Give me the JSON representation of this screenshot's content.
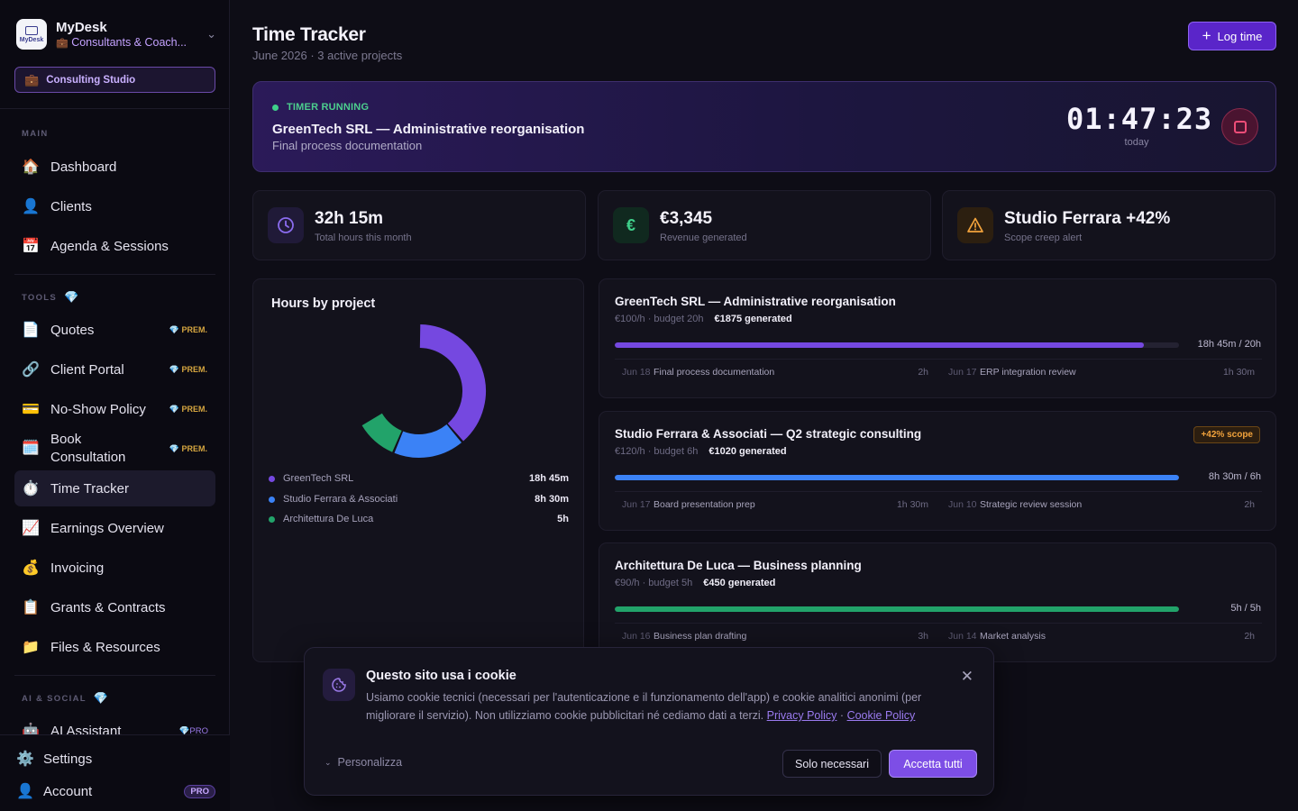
{
  "brand": {
    "name": "MyDesk",
    "logo_text": "MyDesk",
    "workspace": "Consultants & Coach...",
    "studio": "Consulting Studio"
  },
  "sidebar": {
    "sections": {
      "main": "MAIN",
      "tools": "TOOLS",
      "ai_social": "AI & SOCIAL"
    },
    "items": [
      {
        "label": "Dashboard",
        "icon": "house-icon",
        "glyph": "🏠"
      },
      {
        "label": "Clients",
        "icon": "user-icon",
        "glyph": "👤"
      },
      {
        "label": "Agenda & Sessions",
        "icon": "calendar-icon",
        "glyph": "📅"
      },
      {
        "label": "Quotes",
        "icon": "document-icon",
        "glyph": "📄",
        "badge": "PREM."
      },
      {
        "label": "Client Portal",
        "icon": "link-icon",
        "glyph": "🔗",
        "badge": "PREM."
      },
      {
        "label": "No-Show Policy",
        "icon": "credit-card-icon",
        "glyph": "💳",
        "badge": "PREM."
      },
      {
        "label_line1": "Book",
        "label_line2": "Consultation",
        "icon": "calendar-book-icon",
        "glyph": "🗓️",
        "badge": "PREM."
      },
      {
        "label": "Time Tracker",
        "icon": "stopwatch-icon",
        "glyph": "⏱️"
      },
      {
        "label": "Earnings Overview",
        "icon": "chart-icon",
        "glyph": "📈"
      },
      {
        "label": "Invoicing",
        "icon": "money-bag-icon",
        "glyph": "💰"
      },
      {
        "label": "Grants & Contracts",
        "icon": "clipboard-icon",
        "glyph": "📋"
      },
      {
        "label": "Files & Resources",
        "icon": "folder-icon",
        "glyph": "📁"
      },
      {
        "label": "AI Assistant",
        "icon": "robot-icon",
        "glyph": "🤖",
        "badge": "PRO"
      }
    ],
    "bottom": {
      "settings": "Settings",
      "account": "Account",
      "account_badge": "PRO"
    }
  },
  "header": {
    "title": "Time Tracker",
    "subtitle": "June 2026 · 3 active projects",
    "log_time": "Log time"
  },
  "timer": {
    "status": "TIMER RUNNING",
    "project": "GreenTech SRL — Administrative reorganisation",
    "task": "Final process documentation",
    "elapsed": "01:47:23",
    "period": "today"
  },
  "stats": [
    {
      "value": "32h 15m",
      "label": "Total hours this month",
      "icon": "clock-icon",
      "color": "#8b6cf0"
    },
    {
      "value": "€3,345",
      "label": "Revenue generated",
      "icon": "euro-icon",
      "color": "#3fcf8a"
    },
    {
      "value": "Studio Ferrara +42%",
      "label": "Scope creep alert",
      "icon": "warning-icon",
      "color": "#f2a33c"
    }
  ],
  "hours_by_project": {
    "title": "Hours by project",
    "chart_data": {
      "type": "pie",
      "categories": [
        "GreenTech SRL",
        "Studio Ferrara & Associati",
        "Architettura De Luca"
      ],
      "values": [
        18.75,
        8.5,
        5
      ],
      "colors": [
        "#7548e0",
        "#3b82f6",
        "#22a36a"
      ]
    },
    "legend": [
      {
        "name": "GreenTech SRL",
        "value": "18h 45m",
        "color": "#7548e0"
      },
      {
        "name": "Studio Ferrara & Associati",
        "value": "8h 30m",
        "color": "#3b82f6"
      },
      {
        "name": "Architettura De Luca",
        "value": "5h",
        "color": "#22a36a"
      }
    ]
  },
  "projects": [
    {
      "name": "GreenTech SRL — Administrative reorganisation",
      "rate": "€100/h · budget 20h",
      "generated": "€1875 generated",
      "progress": 0.9375,
      "progress_text": "18h 45m / 20h",
      "color": "#7548e0",
      "entries": [
        {
          "date": "Jun 18",
          "task": "Final process documentation",
          "hours": "2h"
        },
        {
          "date": "Jun 17",
          "task": "ERP integration review",
          "hours": "1h 30m"
        }
      ]
    },
    {
      "name": "Studio Ferrara & Associati — Q2 strategic consulting",
      "rate": "€120/h · budget 6h",
      "generated": "€1020 generated",
      "badge": "+42% scope",
      "progress": 1.0,
      "progress_text": "8h 30m / 6h",
      "color": "#3b82f6",
      "entries": [
        {
          "date": "Jun 17",
          "task": "Board presentation prep",
          "hours": "1h 30m"
        },
        {
          "date": "Jun 10",
          "task": "Strategic review session",
          "hours": "2h"
        }
      ]
    },
    {
      "name": "Architettura De Luca — Business planning",
      "rate": "€90/h · budget 5h",
      "generated": "€450 generated",
      "progress": 1.0,
      "progress_text": "5h / 5h",
      "color": "#22a36a",
      "entries": [
        {
          "date": "Jun 16",
          "task": "Business plan drafting",
          "hours": "3h"
        },
        {
          "date": "Jun 14",
          "task": "Market analysis",
          "hours": "2h"
        }
      ]
    }
  ],
  "cookie": {
    "title": "Questo sito usa i cookie",
    "text": "Usiamo cookie tecnici (necessari per l'autenticazione e il funzionamento dell'app) e cookie analitici anonimi (per migliorare il servizio). Non utilizziamo cookie pubblicitari né cediamo dati a terzi.",
    "privacy": "Privacy Policy",
    "separator": "·",
    "cookie_policy": "Cookie Policy",
    "customize": "Personalizza",
    "necessary": "Solo necessari",
    "accept_all": "Accetta tutti"
  }
}
